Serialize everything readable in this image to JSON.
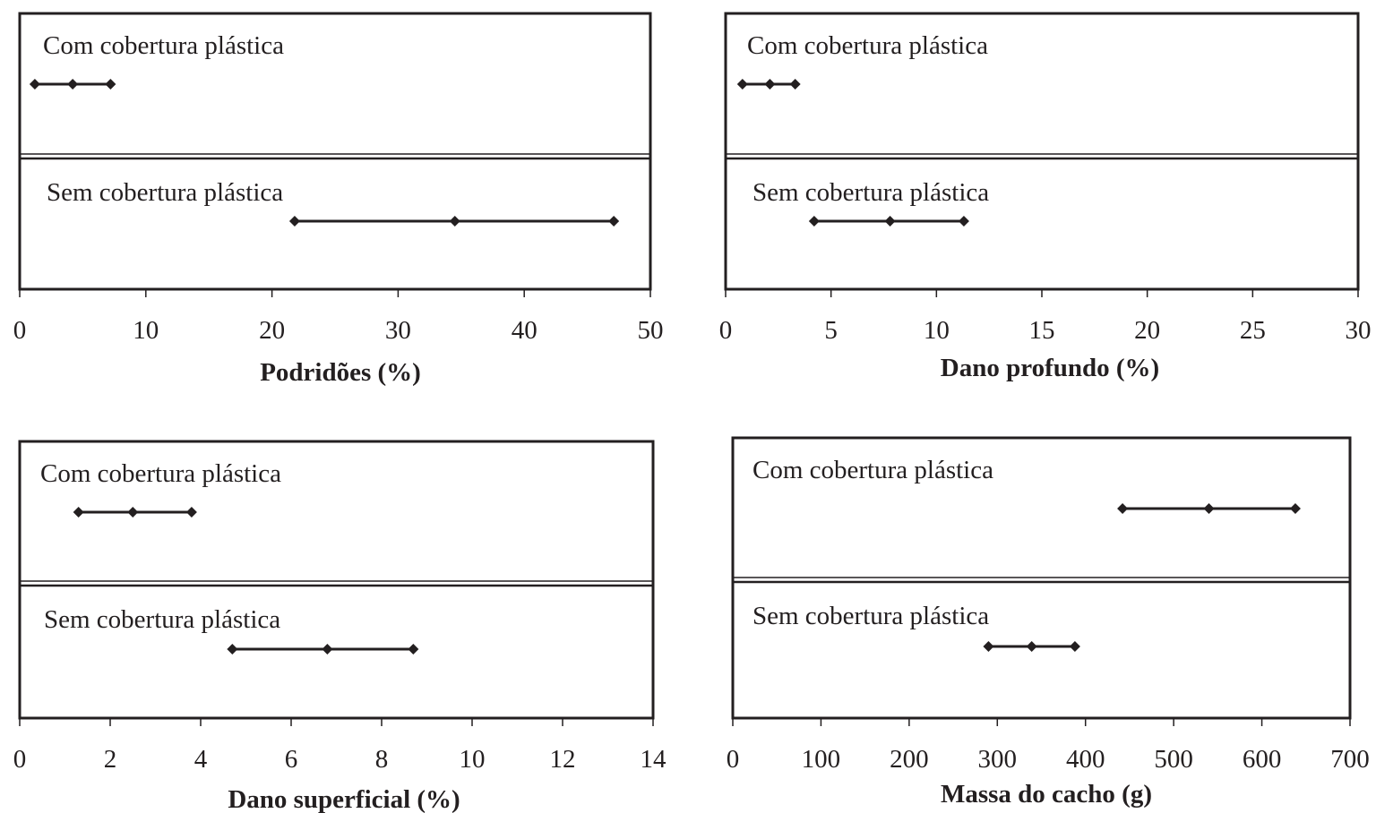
{
  "chart_data": [
    {
      "type": "errorbar-interval",
      "xlabel": "Podridões (%)",
      "xlim": [
        0,
        50
      ],
      "ticks": [
        0,
        10,
        20,
        30,
        40,
        50
      ],
      "tick_labels": [
        "0",
        "10",
        "20",
        "30",
        "40",
        "50"
      ],
      "groups": [
        {
          "label": "Com cobertura plástica",
          "low": 1.2,
          "mean": 4.2,
          "high": 7.2
        },
        {
          "label": "Sem cobertura plástica",
          "low": 21.8,
          "mean": 34.5,
          "high": 47.1
        }
      ]
    },
    {
      "type": "errorbar-interval",
      "xlabel": "Dano profundo (%)",
      "xlim": [
        0,
        30
      ],
      "ticks": [
        0,
        5,
        10,
        15,
        20,
        25,
        30
      ],
      "tick_labels": [
        "0",
        "5",
        "10",
        "15",
        "20",
        "25",
        "30"
      ],
      "groups": [
        {
          "label": "Com cobertura plástica",
          "low": 0.8,
          "mean": 2.1,
          "high": 3.3
        },
        {
          "label": "Sem cobertura plástica",
          "low": 4.2,
          "mean": 7.8,
          "high": 11.3
        }
      ]
    },
    {
      "type": "errorbar-interval",
      "xlabel": "Dano superficial (%)",
      "xlim": [
        0,
        14
      ],
      "ticks": [
        0,
        2,
        4,
        6,
        8,
        10,
        12,
        14
      ],
      "tick_labels": [
        "0",
        "2",
        "4",
        "6",
        "8",
        "10",
        "12",
        "14"
      ],
      "groups": [
        {
          "label": "Com cobertura plástica",
          "low": 1.3,
          "mean": 2.5,
          "high": 3.8
        },
        {
          "label": "Sem cobertura plástica",
          "low": 4.7,
          "mean": 6.8,
          "high": 8.7
        }
      ]
    },
    {
      "type": "errorbar-interval",
      "xlabel": "Massa do cacho (g)",
      "xlim": [
        0,
        700
      ],
      "ticks": [
        0,
        100,
        200,
        300,
        400,
        500,
        600,
        700
      ],
      "tick_labels": [
        "0",
        "100",
        "200",
        "300",
        "400",
        "500",
        "600",
        "700"
      ],
      "groups": [
        {
          "label": "Com cobertura plástica",
          "low": 442,
          "mean": 540,
          "high": 638
        },
        {
          "label": "Sem cobertura plástica",
          "low": 290,
          "mean": 339,
          "high": 388
        }
      ]
    }
  ]
}
